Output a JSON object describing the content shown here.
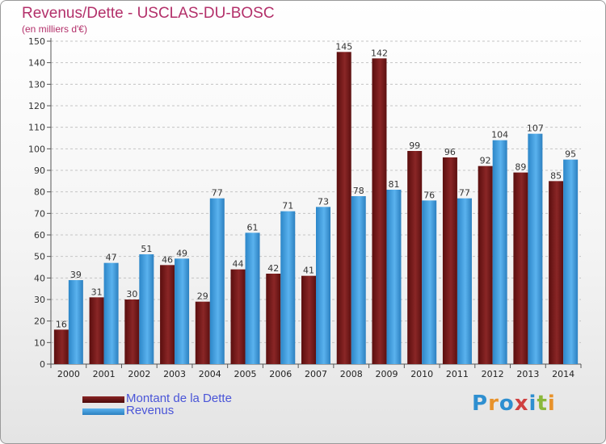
{
  "title": "Revenus/Dette - USCLAS-DU-BOSC",
  "subtitle": "(en milliers d'€)",
  "colors": {
    "dette": "#7a1a1a",
    "revenus": "#3f9ee0",
    "title": "#b3306a",
    "legend_text": "#4a55d8"
  },
  "legend": {
    "dette_label": "Montant de la Dette",
    "revenus_label": "Revenus"
  },
  "logo": {
    "text": "Proxiti",
    "letters": [
      "P",
      "r",
      "o",
      "x",
      "i",
      "t",
      "i"
    ],
    "letter_colors": [
      "#2e8fd0",
      "#e8922a",
      "#2e8fd0",
      "#d04040",
      "#2e8fd0",
      "#8ab83a",
      "#e8922a"
    ]
  },
  "chart_data": {
    "type": "bar",
    "title": "Revenus/Dette - USCLAS-DU-BOSC",
    "subtitle": "(en milliers d'€)",
    "xlabel": "",
    "ylabel": "",
    "ylim": [
      0,
      150
    ],
    "yticks": [
      0,
      10,
      20,
      30,
      40,
      50,
      60,
      70,
      80,
      90,
      100,
      110,
      120,
      130,
      140,
      150
    ],
    "grid": "horizontal dashed",
    "legend_position": "bottom-left",
    "categories": [
      "2000",
      "2001",
      "2002",
      "2003",
      "2004",
      "2005",
      "2006",
      "2007",
      "2008",
      "2009",
      "2010",
      "2011",
      "2012",
      "2013",
      "2014"
    ],
    "series": [
      {
        "name": "Montant de la Dette",
        "color": "#7a1a1a",
        "values": [
          16,
          31,
          30,
          46,
          29,
          44,
          42,
          41,
          145,
          142,
          99,
          96,
          92,
          89,
          85
        ]
      },
      {
        "name": "Revenus",
        "color": "#3f9ee0",
        "values": [
          39,
          47,
          51,
          49,
          77,
          61,
          71,
          73,
          78,
          81,
          76,
          77,
          104,
          107,
          95
        ]
      }
    ]
  }
}
